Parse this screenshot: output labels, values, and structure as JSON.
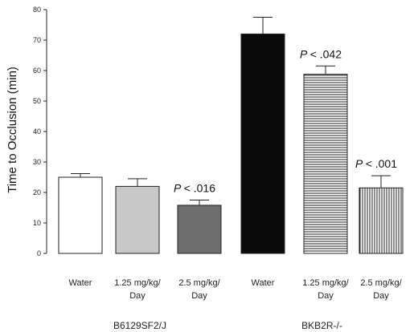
{
  "chart_data": {
    "type": "bar",
    "ylabel": "Time to Occlusion (min)",
    "xlabel": "",
    "title": "",
    "ylim": [
      0,
      80
    ],
    "yticks": [
      0,
      10,
      20,
      30,
      40,
      50,
      60,
      70,
      80
    ],
    "grid": false,
    "groups": [
      {
        "name": "B6129SF2/J",
        "bars": [
          {
            "label": [
              "Water"
            ],
            "value": 25,
            "error": 1.2,
            "fill": "#ffffff",
            "pattern": "none"
          },
          {
            "label": [
              "1.25 mg/kg/",
              "Day"
            ],
            "value": 22,
            "error": 2.5,
            "fill": "#c8c8c8",
            "pattern": "none"
          },
          {
            "label": [
              "2.5 mg/kg/",
              "Day"
            ],
            "value": 15.8,
            "error": 1.7,
            "fill": "#6e6e6e",
            "pattern": "none",
            "annotation": "< .016"
          }
        ]
      },
      {
        "name": "BKB2R-/-",
        "bars": [
          {
            "label": [
              "Water"
            ],
            "value": 72,
            "error": 5.5,
            "fill": "#0a0a0a",
            "pattern": "none"
          },
          {
            "label": [
              "1.25 mg/kg/",
              "Day"
            ],
            "value": 58.8,
            "error": 2.7,
            "fill": "#ffffff",
            "pattern": "horizontal",
            "annotation": "< .042"
          },
          {
            "label": [
              "2.5 mg/kg/",
              "Day"
            ],
            "value": 21.5,
            "error": 4,
            "fill": "#ffffff",
            "pattern": "vertical",
            "annotation": "< .001"
          }
        ]
      }
    ],
    "annotation_prefix": "P"
  }
}
